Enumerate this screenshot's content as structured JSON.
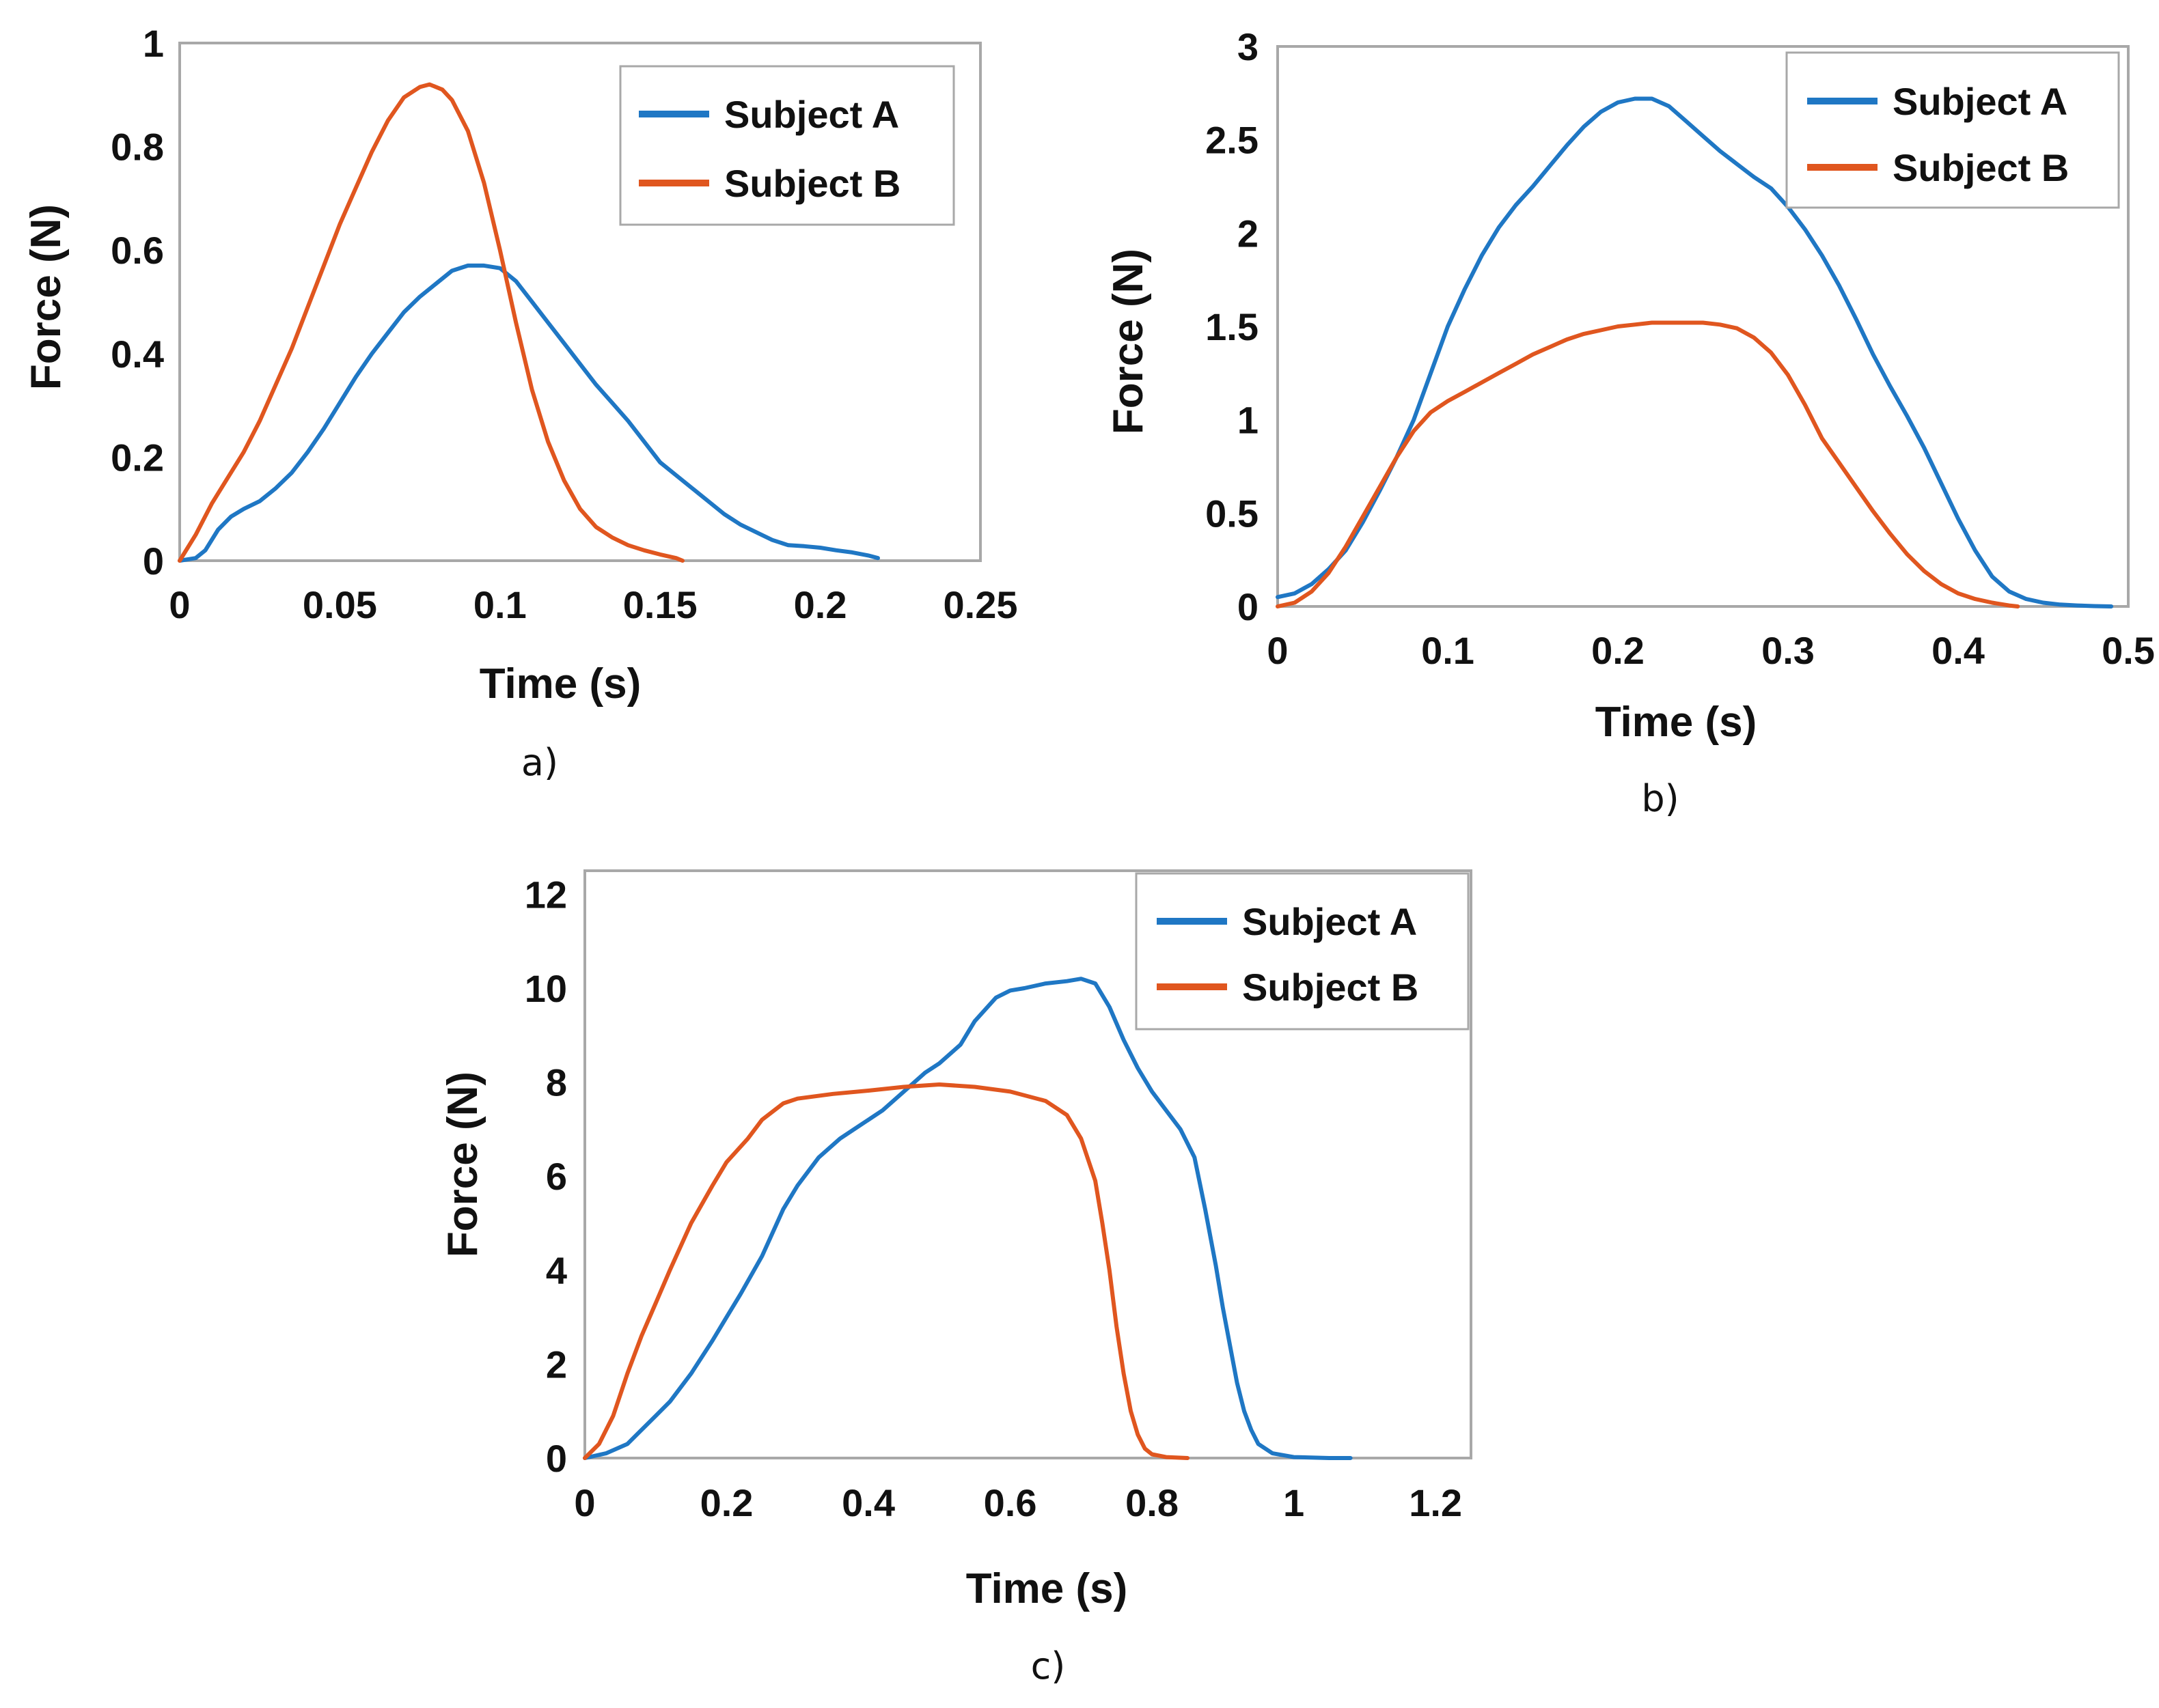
{
  "colors": {
    "subject_a": "#1f77c4",
    "subject_b": "#e0561f",
    "axis": "#a8a8a8"
  },
  "chart_data": [
    {
      "type": "line",
      "caption": "a)",
      "xlabel": "Time (s)",
      "ylabel": "Force (N)",
      "xlim": [
        0,
        0.25
      ],
      "ylim": [
        0,
        1
      ],
      "xticks": [
        0,
        0.05,
        0.1,
        0.15,
        0.2,
        0.25
      ],
      "xtick_labels": [
        "0",
        "0.05",
        "0.1",
        "0.15",
        "0.2",
        "0.25"
      ],
      "yticks": [
        0,
        0.2,
        0.4,
        0.6,
        0.8,
        1
      ],
      "ytick_labels": [
        "0",
        "0.2",
        "0.4",
        "0.6",
        "0.8",
        "1"
      ],
      "legend": "top-right",
      "series": [
        {
          "name": "Subject A",
          "x": [
            0,
            0.005,
            0.008,
            0.012,
            0.016,
            0.02,
            0.025,
            0.03,
            0.035,
            0.04,
            0.045,
            0.05,
            0.055,
            0.06,
            0.065,
            0.07,
            0.075,
            0.08,
            0.085,
            0.09,
            0.095,
            0.1,
            0.105,
            0.11,
            0.115,
            0.12,
            0.125,
            0.13,
            0.135,
            0.14,
            0.145,
            0.15,
            0.155,
            0.16,
            0.165,
            0.17,
            0.175,
            0.18,
            0.185,
            0.19,
            0.195,
            0.2,
            0.205,
            0.21,
            0.215,
            0.218
          ],
          "y": [
            0,
            0.005,
            0.02,
            0.06,
            0.085,
            0.1,
            0.115,
            0.14,
            0.17,
            0.21,
            0.255,
            0.305,
            0.355,
            0.4,
            0.44,
            0.48,
            0.51,
            0.535,
            0.56,
            0.57,
            0.57,
            0.565,
            0.54,
            0.5,
            0.46,
            0.42,
            0.38,
            0.34,
            0.305,
            0.27,
            0.23,
            0.19,
            0.165,
            0.14,
            0.115,
            0.09,
            0.07,
            0.055,
            0.04,
            0.03,
            0.028,
            0.025,
            0.02,
            0.016,
            0.01,
            0.005
          ]
        },
        {
          "name": "Subject B",
          "x": [
            0,
            0.005,
            0.01,
            0.015,
            0.02,
            0.025,
            0.03,
            0.035,
            0.04,
            0.045,
            0.05,
            0.055,
            0.06,
            0.065,
            0.07,
            0.075,
            0.078,
            0.082,
            0.085,
            0.09,
            0.095,
            0.1,
            0.105,
            0.11,
            0.115,
            0.12,
            0.125,
            0.13,
            0.135,
            0.14,
            0.145,
            0.15,
            0.155,
            0.157
          ],
          "y": [
            0,
            0.05,
            0.11,
            0.16,
            0.21,
            0.27,
            0.34,
            0.41,
            0.49,
            0.57,
            0.65,
            0.72,
            0.79,
            0.85,
            0.895,
            0.915,
            0.92,
            0.91,
            0.89,
            0.83,
            0.73,
            0.6,
            0.46,
            0.33,
            0.23,
            0.155,
            0.1,
            0.065,
            0.045,
            0.03,
            0.02,
            0.012,
            0.005,
            0.0
          ]
        }
      ]
    },
    {
      "type": "line",
      "caption": "b)",
      "xlabel": "Time (s)",
      "ylabel": "Force (N)",
      "xlim": [
        0,
        0.5
      ],
      "ylim": [
        0,
        3
      ],
      "xticks": [
        0,
        0.1,
        0.2,
        0.3,
        0.4,
        0.5
      ],
      "xtick_labels": [
        "0",
        "0.1",
        "0.2",
        "0.3",
        "0.4",
        "0.5"
      ],
      "yticks": [
        0,
        0.5,
        1,
        1.5,
        2,
        2.5,
        3
      ],
      "ytick_labels": [
        "0",
        "0.5",
        "1",
        "1.5",
        "2",
        "2.5",
        "3"
      ],
      "legend": "top-right",
      "series": [
        {
          "name": "Subject A",
          "x": [
            0,
            0.01,
            0.02,
            0.03,
            0.04,
            0.05,
            0.06,
            0.07,
            0.08,
            0.09,
            0.1,
            0.11,
            0.12,
            0.13,
            0.14,
            0.15,
            0.16,
            0.17,
            0.18,
            0.19,
            0.2,
            0.21,
            0.22,
            0.23,
            0.24,
            0.25,
            0.26,
            0.27,
            0.28,
            0.29,
            0.3,
            0.31,
            0.32,
            0.33,
            0.34,
            0.35,
            0.36,
            0.37,
            0.38,
            0.39,
            0.4,
            0.41,
            0.42,
            0.43,
            0.44,
            0.45,
            0.46,
            0.47,
            0.48,
            0.49
          ],
          "y": [
            0.05,
            0.07,
            0.12,
            0.2,
            0.3,
            0.45,
            0.62,
            0.8,
            1.0,
            1.25,
            1.5,
            1.7,
            1.88,
            2.03,
            2.15,
            2.25,
            2.36,
            2.47,
            2.57,
            2.65,
            2.7,
            2.72,
            2.72,
            2.68,
            2.6,
            2.52,
            2.44,
            2.37,
            2.3,
            2.24,
            2.14,
            2.02,
            1.88,
            1.72,
            1.54,
            1.35,
            1.18,
            1.02,
            0.85,
            0.66,
            0.47,
            0.3,
            0.16,
            0.08,
            0.04,
            0.02,
            0.01,
            0.005,
            0.002,
            0.0
          ]
        },
        {
          "name": "Subject B",
          "x": [
            0,
            0.01,
            0.02,
            0.03,
            0.04,
            0.05,
            0.06,
            0.07,
            0.08,
            0.09,
            0.1,
            0.11,
            0.12,
            0.13,
            0.14,
            0.15,
            0.16,
            0.17,
            0.18,
            0.19,
            0.2,
            0.21,
            0.22,
            0.23,
            0.24,
            0.25,
            0.26,
            0.27,
            0.28,
            0.29,
            0.3,
            0.31,
            0.32,
            0.33,
            0.34,
            0.35,
            0.36,
            0.37,
            0.38,
            0.39,
            0.4,
            0.41,
            0.42,
            0.43,
            0.435
          ],
          "y": [
            0.0,
            0.02,
            0.08,
            0.18,
            0.32,
            0.48,
            0.64,
            0.8,
            0.94,
            1.04,
            1.1,
            1.15,
            1.2,
            1.25,
            1.3,
            1.35,
            1.39,
            1.43,
            1.46,
            1.48,
            1.5,
            1.51,
            1.52,
            1.52,
            1.52,
            1.52,
            1.51,
            1.49,
            1.44,
            1.36,
            1.24,
            1.08,
            0.9,
            0.77,
            0.64,
            0.51,
            0.39,
            0.28,
            0.19,
            0.12,
            0.07,
            0.04,
            0.02,
            0.005,
            0.0
          ]
        }
      ]
    },
    {
      "type": "line",
      "caption": "c)",
      "xlabel": "Time (s)",
      "ylabel": "Force (N)",
      "xlim": [
        0,
        1.25
      ],
      "ylim": [
        0,
        12.5
      ],
      "xticks": [
        0,
        0.2,
        0.4,
        0.6,
        0.8,
        1,
        1.2
      ],
      "xtick_labels": [
        "0",
        "0.2",
        "0.4",
        "0.6",
        "0.8",
        "1",
        "1.2"
      ],
      "yticks": [
        0,
        2,
        4,
        6,
        8,
        10,
        12
      ],
      "ytick_labels": [
        "0",
        "2",
        "4",
        "6",
        "8",
        "10",
        "12"
      ],
      "legend": "top-right",
      "series": [
        {
          "name": "Subject A",
          "x": [
            0,
            0.03,
            0.06,
            0.08,
            0.1,
            0.12,
            0.15,
            0.18,
            0.2,
            0.22,
            0.25,
            0.28,
            0.3,
            0.33,
            0.36,
            0.39,
            0.42,
            0.45,
            0.48,
            0.5,
            0.53,
            0.55,
            0.58,
            0.6,
            0.62,
            0.65,
            0.68,
            0.7,
            0.72,
            0.74,
            0.76,
            0.78,
            0.8,
            0.82,
            0.84,
            0.86,
            0.875,
            0.89,
            0.9,
            0.91,
            0.92,
            0.93,
            0.94,
            0.95,
            0.97,
            1.0,
            1.05,
            1.08
          ],
          "y": [
            0,
            0.1,
            0.3,
            0.6,
            0.9,
            1.2,
            1.8,
            2.5,
            3.0,
            3.5,
            4.3,
            5.3,
            5.8,
            6.4,
            6.8,
            7.1,
            7.4,
            7.8,
            8.2,
            8.4,
            8.8,
            9.3,
            9.8,
            9.95,
            10.0,
            10.1,
            10.15,
            10.2,
            10.1,
            9.6,
            8.9,
            8.3,
            7.8,
            7.4,
            7.0,
            6.4,
            5.3,
            4.1,
            3.2,
            2.4,
            1.6,
            1.0,
            0.6,
            0.3,
            0.1,
            0.02,
            0.0,
            0.0
          ]
        },
        {
          "name": "Subject B",
          "x": [
            0,
            0.02,
            0.04,
            0.06,
            0.08,
            0.1,
            0.12,
            0.15,
            0.18,
            0.2,
            0.23,
            0.25,
            0.28,
            0.3,
            0.35,
            0.4,
            0.45,
            0.5,
            0.55,
            0.6,
            0.65,
            0.68,
            0.7,
            0.72,
            0.73,
            0.74,
            0.75,
            0.76,
            0.77,
            0.78,
            0.79,
            0.8,
            0.82,
            0.85
          ],
          "y": [
            0,
            0.3,
            0.9,
            1.8,
            2.6,
            3.3,
            4.0,
            5.0,
            5.8,
            6.3,
            6.8,
            7.2,
            7.55,
            7.65,
            7.75,
            7.82,
            7.9,
            7.95,
            7.9,
            7.8,
            7.6,
            7.3,
            6.8,
            5.9,
            5.0,
            4.0,
            2.8,
            1.8,
            1.0,
            0.5,
            0.2,
            0.08,
            0.02,
            0.0
          ]
        }
      ]
    }
  ]
}
